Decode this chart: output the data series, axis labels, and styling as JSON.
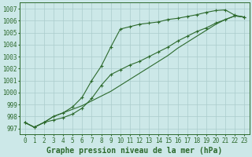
{
  "title": "Graphe pression niveau de la mer (hPa)",
  "x": [
    0,
    1,
    2,
    3,
    4,
    5,
    6,
    7,
    8,
    9,
    10,
    11,
    12,
    13,
    14,
    15,
    16,
    17,
    18,
    19,
    20,
    21,
    22,
    23
  ],
  "series1_marked": [
    997.5,
    997.1,
    997.5,
    998.0,
    998.3,
    998.8,
    999.6,
    1001.0,
    1002.2,
    1003.8,
    1005.3,
    1005.5,
    1005.7,
    1005.8,
    1005.9,
    1006.1,
    1006.2,
    1006.35,
    1006.5,
    1006.7,
    1006.85,
    1006.9,
    1006.45,
    1006.3
  ],
  "series2_diag": [
    997.5,
    997.1,
    997.5,
    998.0,
    998.3,
    998.6,
    998.9,
    999.3,
    999.7,
    1000.1,
    1000.6,
    1001.1,
    1001.6,
    1002.1,
    1002.6,
    1003.1,
    1003.7,
    1004.2,
    1004.7,
    1005.2,
    1005.7,
    1006.1,
    1006.4,
    1006.3
  ],
  "series3_marked": [
    997.5,
    997.1,
    997.5,
    997.7,
    997.9,
    998.2,
    998.7,
    999.5,
    1000.6,
    1001.5,
    1001.9,
    1002.3,
    1002.6,
    1003.0,
    1003.4,
    1003.8,
    1004.3,
    1004.7,
    1005.1,
    1005.4,
    1005.8,
    1006.1,
    1006.4,
    1006.3
  ],
  "line_color": "#2d6a2d",
  "bg_color": "#cce8e8",
  "grid_color": "#aacccc",
  "ylim": [
    996.5,
    1007.5
  ],
  "xlim": [
    -0.5,
    23.5
  ],
  "yticks": [
    997,
    998,
    999,
    1000,
    1001,
    1002,
    1003,
    1004,
    1005,
    1006,
    1007
  ],
  "xtick_labels": [
    "0",
    "1",
    "2",
    "3",
    "4",
    "5",
    "6",
    "7",
    "8",
    "9",
    "10",
    "11",
    "12",
    "13",
    "14",
    "15",
    "16",
    "17",
    "18",
    "19",
    "20",
    "21",
    "22",
    "23"
  ],
  "title_fontsize": 7,
  "tick_fontsize": 5.5,
  "figsize": [
    3.2,
    2.0
  ],
  "dpi": 100
}
